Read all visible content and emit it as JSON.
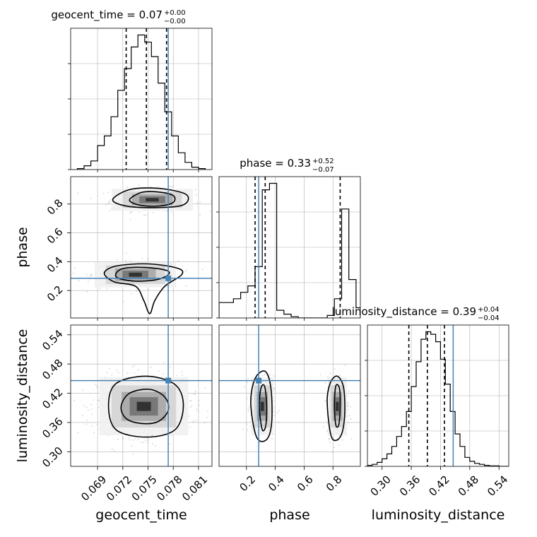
{
  "chart_data": {
    "type": "corner",
    "parameters": [
      "geocent_time",
      "phase",
      "luminosity_distance"
    ],
    "truth": {
      "geocent_time": 0.0774,
      "phase": 0.285,
      "luminosity_distance": 0.446
    },
    "colors": {
      "truth": "#4682b4",
      "hist": "#000000",
      "grid": "#b0b0b0",
      "samples": "#808080"
    },
    "titles": [
      {
        "param": "geocent_time",
        "base": "geocent_time = 0.07",
        "plus": "+0.00",
        "minus": "−0.00"
      },
      {
        "param": "phase",
        "base": "phase = 0.33",
        "plus": "+0.52",
        "minus": "−0.07"
      },
      {
        "param": "luminosity_distance",
        "base": "luminosity_distance = 0.39",
        "plus": "+0.04",
        "minus": "−0.04"
      }
    ],
    "axes": {
      "geocent_time": {
        "range": [
          0.0658,
          0.0826
        ],
        "ticks": [
          0.069,
          0.072,
          0.075,
          0.078,
          0.081
        ],
        "tick_labels": [
          "0.069",
          "0.072",
          "0.075",
          "0.078",
          "0.081"
        ],
        "label": "geocent_time"
      },
      "phase": {
        "range": [
          0.01,
          0.99
        ],
        "ticks": [
          0.2,
          0.4,
          0.6,
          0.8
        ],
        "tick_labels": [
          "0.2",
          "0.4",
          "0.6",
          "0.8"
        ],
        "label": "phase"
      },
      "luminosity_distance": {
        "range": [
          0.27,
          0.56
        ],
        "ticks": [
          0.3,
          0.36,
          0.42,
          0.48,
          0.54
        ],
        "tick_labels": [
          "0.30",
          "0.36",
          "0.42",
          "0.48",
          "0.54"
        ],
        "label": "luminosity_distance"
      }
    },
    "histograms": {
      "geocent_time": {
        "quantiles": [
          0.0724,
          0.0748,
          0.0772
        ],
        "edges": [
          0.0666,
          0.0674,
          0.0682,
          0.069,
          0.0698,
          0.0706,
          0.0714,
          0.0722,
          0.073,
          0.0738,
          0.0746,
          0.0754,
          0.0762,
          0.077,
          0.0778,
          0.0786,
          0.0794,
          0.0802,
          0.081,
          0.0818
        ],
        "counts": [
          2,
          8,
          18,
          50,
          70,
          110,
          165,
          210,
          255,
          280,
          265,
          235,
          180,
          120,
          70,
          35,
          15,
          5,
          2
        ]
      },
      "phase": {
        "quantiles": [
          0.26,
          0.33,
          0.85
        ],
        "edges": [
          0.01,
          0.06,
          0.11,
          0.16,
          0.21,
          0.26,
          0.31,
          0.36,
          0.41,
          0.46,
          0.51,
          0.56,
          0.61,
          0.66,
          0.71,
          0.76,
          0.81,
          0.86,
          0.91,
          0.96,
          0.99
        ],
        "counts": [
          12,
          12,
          15,
          20,
          25,
          40,
          100,
          105,
          6,
          3,
          1,
          0,
          0,
          0,
          0,
          2,
          15,
          85,
          30,
          8
        ]
      },
      "luminosity_distance": {
        "quantiles": [
          0.355,
          0.393,
          0.428
        ],
        "edges": [
          0.27,
          0.28,
          0.29,
          0.3,
          0.31,
          0.32,
          0.33,
          0.34,
          0.35,
          0.36,
          0.37,
          0.38,
          0.39,
          0.4,
          0.41,
          0.42,
          0.43,
          0.44,
          0.45,
          0.46,
          0.47,
          0.48,
          0.49,
          0.5,
          0.51,
          0.52,
          0.53,
          0.54,
          0.55,
          0.56
        ],
        "counts": [
          2,
          4,
          8,
          15,
          25,
          40,
          60,
          80,
          110,
          160,
          210,
          255,
          270,
          265,
          250,
          215,
          165,
          110,
          65,
          40,
          18,
          10,
          6,
          4,
          2,
          1,
          1,
          0,
          0
        ]
      }
    },
    "joint": [
      {
        "x": "geocent_time",
        "y": "phase",
        "modes": [
          {
            "cx": 0.0755,
            "cy": 0.83,
            "sx": 0.0022,
            "sy": 0.035,
            "weight": 0.48
          },
          {
            "cx": 0.0735,
            "cy": 0.31,
            "sx": 0.0022,
            "sy": 0.04,
            "weight": 0.52
          }
        ],
        "contours": [
          {
            "level": 0.39,
            "points": [
              [
                0.0728,
                0.83
              ],
              [
                0.0742,
                0.88
              ],
              [
                0.076,
                0.885
              ],
              [
                0.0778,
                0.865
              ],
              [
                0.0782,
                0.83
              ],
              [
                0.0776,
                0.8
              ],
              [
                0.0758,
                0.785
              ],
              [
                0.0738,
                0.795
              ],
              [
                0.0728,
                0.83
              ]
            ]
          },
          {
            "level": 0.86,
            "points": [
              [
                0.0708,
                0.83
              ],
              [
                0.0728,
                0.9
              ],
              [
                0.076,
                0.91
              ],
              [
                0.079,
                0.88
              ],
              [
                0.0798,
                0.84
              ],
              [
                0.079,
                0.79
              ],
              [
                0.076,
                0.775
              ],
              [
                0.0725,
                0.785
              ],
              [
                0.0708,
                0.83
              ]
            ]
          },
          {
            "level": 0.39,
            "points": [
              [
                0.0712,
                0.32
              ],
              [
                0.0722,
                0.355
              ],
              [
                0.0748,
                0.36
              ],
              [
                0.0772,
                0.34
              ],
              [
                0.0774,
                0.31
              ],
              [
                0.076,
                0.275
              ],
              [
                0.0735,
                0.265
              ],
              [
                0.0715,
                0.285
              ],
              [
                0.0712,
                0.32
              ]
            ]
          },
          {
            "level": 0.86,
            "points": [
              [
                0.0698,
                0.32
              ],
              [
                0.0712,
                0.37
              ],
              [
                0.075,
                0.385
              ],
              [
                0.0785,
                0.355
              ],
              [
                0.079,
                0.31
              ],
              [
                0.077,
                0.23
              ],
              [
                0.0758,
                0.13
              ],
              [
                0.0752,
                0.04
              ],
              [
                0.0745,
                0.13
              ],
              [
                0.0735,
                0.23
              ],
              [
                0.071,
                0.26
              ],
              [
                0.0698,
                0.32
              ]
            ]
          }
        ]
      },
      {
        "x": "geocent_time",
        "y": "luminosity_distance",
        "modes": [
          {
            "cx": 0.0745,
            "cy": 0.393,
            "sx": 0.0024,
            "sy": 0.027,
            "weight": 1
          }
        ],
        "contours": [
          {
            "level": 0.39,
            "points": [
              [
                0.0718,
                0.393
              ],
              [
                0.0728,
                0.42
              ],
              [
                0.0752,
                0.428
              ],
              [
                0.077,
                0.412
              ],
              [
                0.0774,
                0.385
              ],
              [
                0.0762,
                0.362
              ],
              [
                0.0742,
                0.358
              ],
              [
                0.0724,
                0.368
              ],
              [
                0.0718,
                0.393
              ]
            ]
          },
          {
            "level": 0.86,
            "points": [
              [
                0.0703,
                0.395
              ],
              [
                0.0712,
                0.44
              ],
              [
                0.0748,
                0.455
              ],
              [
                0.0782,
                0.438
              ],
              [
                0.0792,
                0.395
              ],
              [
                0.0782,
                0.345
              ],
              [
                0.0748,
                0.33
              ],
              [
                0.0712,
                0.345
              ],
              [
                0.0703,
                0.395
              ]
            ]
          }
        ]
      },
      {
        "x": "phase",
        "y": "luminosity_distance",
        "modes": [
          {
            "cx": 0.31,
            "cy": 0.393,
            "sx": 0.035,
            "sy": 0.027,
            "weight": 0.5
          },
          {
            "cx": 0.83,
            "cy": 0.393,
            "sx": 0.03,
            "sy": 0.027,
            "weight": 0.5
          }
        ],
        "contours": [
          {
            "level": 0.39,
            "points": [
              [
                0.29,
                0.39
              ],
              [
                0.3,
                0.43
              ],
              [
                0.325,
                0.435
              ],
              [
                0.34,
                0.4
              ],
              [
                0.335,
                0.355
              ],
              [
                0.31,
                0.345
              ],
              [
                0.29,
                0.39
              ]
            ]
          },
          {
            "level": 0.86,
            "points": [
              [
                0.23,
                0.4
              ],
              [
                0.26,
                0.45
              ],
              [
                0.33,
                0.465
              ],
              [
                0.37,
                0.43
              ],
              [
                0.375,
                0.36
              ],
              [
                0.34,
                0.325
              ],
              [
                0.27,
                0.33
              ],
              [
                0.23,
                0.4
              ]
            ]
          },
          {
            "level": 0.39,
            "points": [
              [
                0.81,
                0.395
              ],
              [
                0.82,
                0.435
              ],
              [
                0.845,
                0.43
              ],
              [
                0.85,
                0.39
              ],
              [
                0.84,
                0.355
              ],
              [
                0.82,
                0.355
              ],
              [
                0.81,
                0.395
              ]
            ]
          },
          {
            "level": 0.86,
            "points": [
              [
                0.76,
                0.4
              ],
              [
                0.78,
                0.44
              ],
              [
                0.83,
                0.455
              ],
              [
                0.875,
                0.43
              ],
              [
                0.88,
                0.37
              ],
              [
                0.85,
                0.33
              ],
              [
                0.79,
                0.33
              ],
              [
                0.76,
                0.4
              ]
            ]
          }
        ]
      }
    ]
  }
}
